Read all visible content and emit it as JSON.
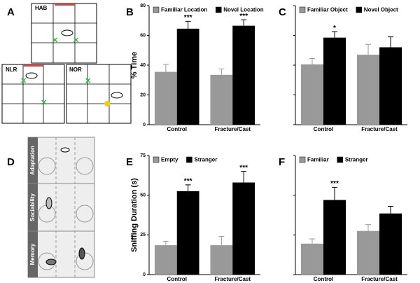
{
  "panel_labels": [
    "A",
    "B",
    "C",
    "D",
    "E",
    "F"
  ],
  "diagram_a": {
    "labels": [
      "HAB",
      "NLR",
      "NOR"
    ]
  },
  "diagram_d": {
    "labels": [
      "Adaptation",
      "Sociability",
      "Memory"
    ]
  },
  "chart_data": [
    {
      "type": "bar",
      "y_label": "% Time",
      "categories": [
        "Control",
        "Fracture/Cast"
      ],
      "ylim": [
        0,
        80
      ],
      "yticks": [
        0,
        20,
        40,
        60,
        80
      ],
      "tick_labels": true,
      "series": [
        {
          "name": "Familiar Location",
          "color": "#999999",
          "values": [
            35.5,
            33.5
          ],
          "errors": [
            5,
            4
          ],
          "significance": [
            null,
            null
          ]
        },
        {
          "name": "Novel Location",
          "color": "#000000",
          "values": [
            64.5,
            66.5
          ],
          "errors": [
            5,
            4
          ],
          "significance": [
            "***",
            "***"
          ]
        }
      ]
    },
    {
      "type": "bar",
      "categories": [
        "Control",
        "Fracture/Cast"
      ],
      "ylim": [
        0,
        80
      ],
      "yticks": [
        0,
        20,
        40,
        60,
        80
      ],
      "tick_labels": false,
      "series": [
        {
          "name": "Familiar Object",
          "color": "#999999",
          "values": [
            40.5,
            47
          ],
          "errors": [
            4,
            7
          ],
          "significance": [
            null,
            null
          ]
        },
        {
          "name": "Novel Object",
          "color": "#000000",
          "values": [
            58.5,
            52
          ],
          "errors": [
            4,
            7
          ],
          "significance": [
            "*",
            null
          ]
        }
      ]
    },
    {
      "type": "bar",
      "y_label": "Sniffing Duration (s)",
      "categories": [
        "Control",
        "Fracture/Cast"
      ],
      "ylim": [
        0,
        75
      ],
      "yticks": [
        0,
        25,
        50,
        75
      ],
      "tick_labels": true,
      "series": [
        {
          "name": "Empty",
          "color": "#999999",
          "values": [
            18.5,
            18.5
          ],
          "errors": [
            2.5,
            5.5
          ],
          "significance": [
            null,
            null
          ]
        },
        {
          "name": "Stranger",
          "color": "#000000",
          "values": [
            52.5,
            58
          ],
          "errors": [
            4,
            7
          ],
          "significance": [
            "***",
            "***"
          ]
        }
      ]
    },
    {
      "type": "bar",
      "categories": [
        "Control",
        "Fracture/Cast"
      ],
      "ylim": [
        0,
        75
      ],
      "yticks": [
        0,
        25,
        50,
        75
      ],
      "tick_labels": false,
      "series": [
        {
          "name": "Familiar",
          "color": "#999999",
          "values": [
            19.5,
            27.5
          ],
          "errors": [
            3,
            4
          ],
          "significance": [
            null,
            null
          ]
        },
        {
          "name": "Stranger",
          "color": "#000000",
          "values": [
            47,
            38.5
          ],
          "errors": [
            8,
            4.5
          ],
          "significance": [
            "***",
            null
          ]
        }
      ]
    }
  ]
}
